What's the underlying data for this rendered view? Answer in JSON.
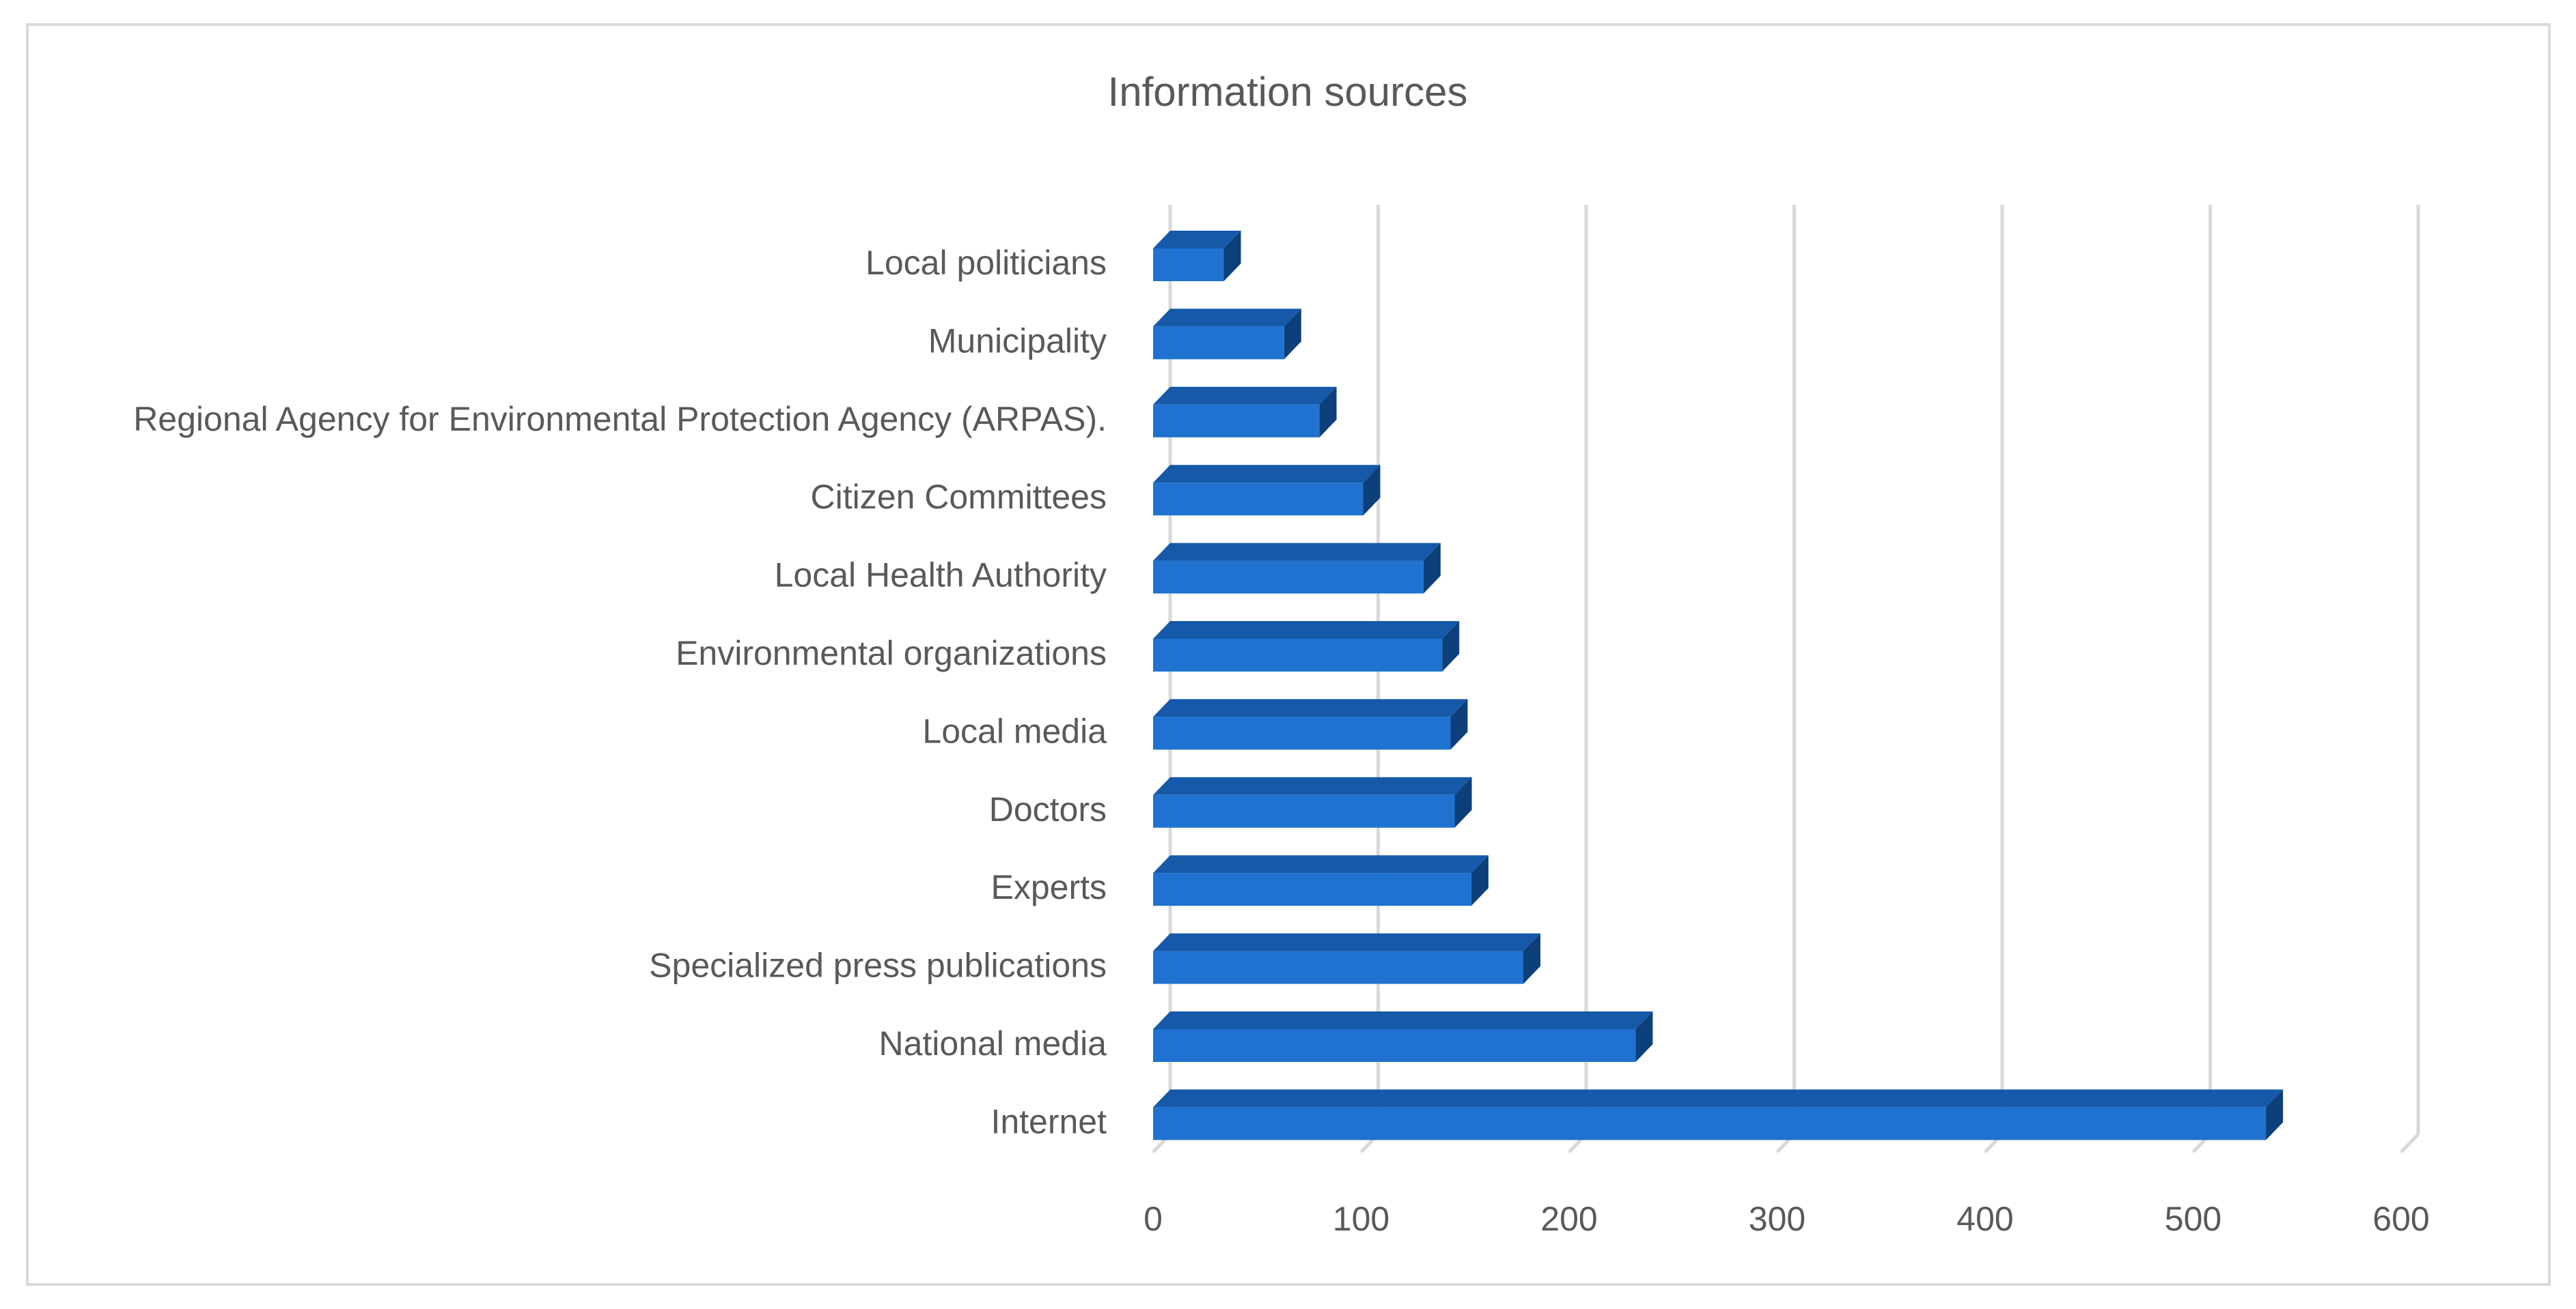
{
  "chart_data": {
    "type": "bar",
    "orientation": "horizontal",
    "style": "3d",
    "title": "Information sources",
    "categories": [
      "Internet",
      "National media",
      "Specialized press publications",
      "Experts",
      "Doctors",
      "Local media",
      "Environmental organizations",
      "Local Health Authority",
      "Citizen Committees",
      "Regional Agency for Environmental Protection Agency (ARPAS).",
      "Municipality",
      "Local politicians"
    ],
    "values": [
      535,
      232,
      178,
      153,
      145,
      143,
      139,
      130,
      101,
      80,
      63,
      34
    ],
    "xlabel": "",
    "ylabel": "",
    "xlim": [
      0,
      600
    ],
    "xticks": [
      0,
      100,
      200,
      300,
      400,
      500,
      600
    ],
    "grid": true,
    "legend": "none",
    "bar_color": "#1f72d0",
    "bar_top_color": "#1559a8",
    "bar_side_color": "#0d3f7a",
    "grid_color": "#d9d9d9"
  }
}
